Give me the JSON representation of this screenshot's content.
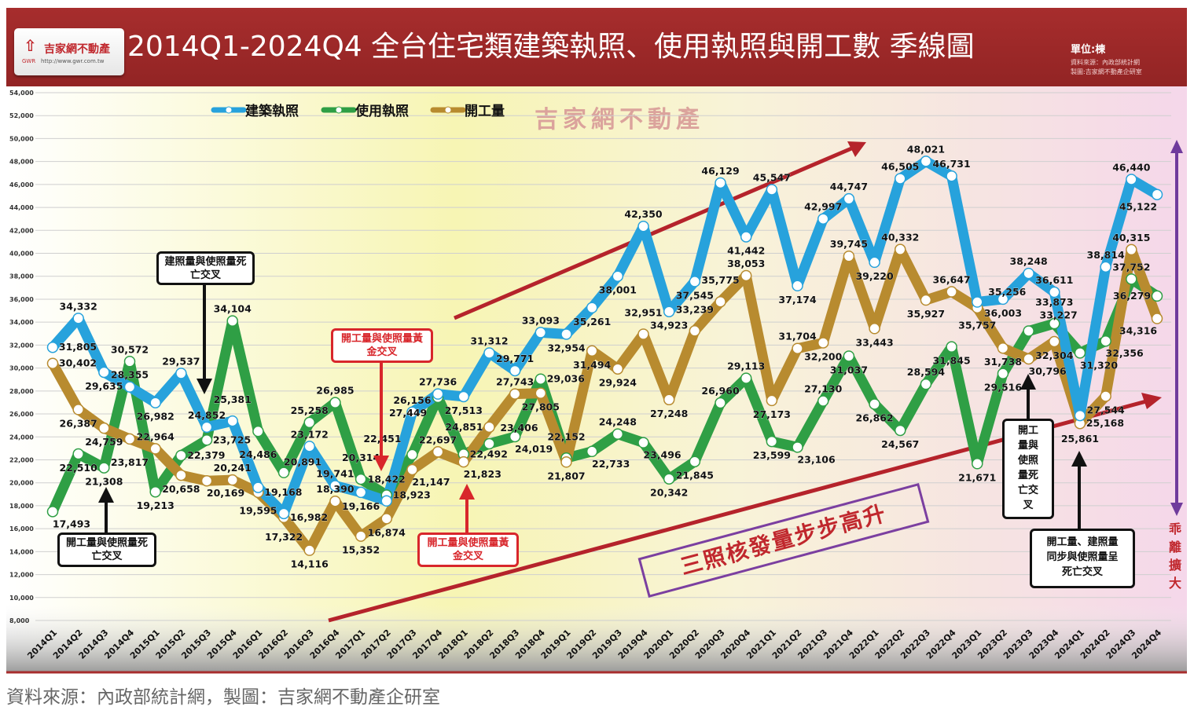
{
  "header": {
    "title": "2014Q1-2024Q4  全台住宅類建築執照、使用執照與開工數  季線圖",
    "unit": "單位:棟",
    "source_small": "資料來源：內政部統計網",
    "maker_small": "製圖:吉家網不動產企研室"
  },
  "logo": {
    "mark": "⇧",
    "name": "吉家網不動產",
    "gwr": "GWR",
    "url": "http://www.gwr.com.tw"
  },
  "watermark": "吉家網不動產",
  "footer": "資料來源：內政部統計網，製圖：吉家網不動產企研室",
  "annotations": {
    "death_cross_permit": "建照量與使照量死亡交叉",
    "death_cross_start_1": "開工量與使照量死亡交叉",
    "golden_cross_1": "開工量與使照量黃金交叉",
    "golden_cross_2": "開工量與使照量黃金交叉",
    "death_cross_start_2": "開工量與使照量死亡交叉",
    "death_cross_all": "開工量、建照量同步與使照量呈死亡交叉",
    "slogan": "三照核發量步步高升",
    "divergence": "乖離擴大"
  },
  "colors": {
    "building": "#27a2dc",
    "usage": "#2f9f45",
    "start": "#b88b2f",
    "trend": "#c0272d",
    "purple": "#6f3b9c"
  },
  "chart_data": {
    "type": "line",
    "title": "2014Q1-2024Q4 全台住宅類建築執照、使用執照與開工數 季線圖",
    "ylabel": "單位:棟",
    "ylim": [
      8000,
      54000
    ],
    "ytick_step": 2000,
    "grid": true,
    "legend_position": "top-left",
    "categories": [
      "2014Q1",
      "2014Q2",
      "2014Q3",
      "2014Q4",
      "2015Q1",
      "2015Q2",
      "2015Q3",
      "2015Q4",
      "2016Q1",
      "2016Q2",
      "2016Q3",
      "2016Q4",
      "2017Q1",
      "2017Q2",
      "2017Q3",
      "2017Q4",
      "2018Q1",
      "2018Q2",
      "2018Q3",
      "2018Q4",
      "2019Q1",
      "2019Q2",
      "2019Q3",
      "2019Q4",
      "2020Q1",
      "2020Q2",
      "2020Q3",
      "2020Q4",
      "2021Q1",
      "2021Q2",
      "2021Q3",
      "2021Q4",
      "2022Q1",
      "2022Q2",
      "2022Q3",
      "2022Q4",
      "2023Q1",
      "2023Q2",
      "2023Q3",
      "2023Q4",
      "2024Q1",
      "2024Q2",
      "2024Q3",
      "2024Q4"
    ],
    "series": [
      {
        "name": "建築執照",
        "key": "building",
        "values": [
          31805,
          34332,
          29635,
          28355,
          26982,
          29537,
          24852,
          25381,
          19595,
          17322,
          23172,
          19741,
          19166,
          18422,
          26156,
          27736,
          27513,
          31312,
          29771,
          33093,
          32954,
          35261,
          38001,
          42350,
          34923,
          37545,
          46129,
          41442,
          45547,
          37174,
          42997,
          44747,
          39220,
          46505,
          48021,
          46731,
          35757,
          36003,
          38248,
          36611,
          25861,
          38814,
          46440,
          45122
        ]
      },
      {
        "name": "使用執照",
        "key": "usage",
        "values": [
          17493,
          22510,
          21308,
          30572,
          19213,
          22379,
          23725,
          34104,
          24486,
          20891,
          25258,
          26985,
          20314,
          18923,
          22451,
          27449,
          22492,
          23406,
          24019,
          29036,
          22152,
          22733,
          24248,
          23496,
          20342,
          21845,
          26960,
          29113,
          23599,
          23106,
          27130,
          31037,
          26862,
          24567,
          28594,
          31845,
          21671,
          29516,
          33227,
          33873,
          31320,
          32356,
          37752,
          36279
        ]
      },
      {
        "name": "開工量",
        "key": "start",
        "values": [
          30402,
          26387,
          24759,
          23817,
          22964,
          20658,
          20169,
          20241,
          19168,
          16982,
          14116,
          18390,
          15352,
          16874,
          21147,
          22697,
          21823,
          24851,
          27743,
          27805,
          21807,
          31494,
          29924,
          32951,
          27248,
          33239,
          35775,
          38053,
          27173,
          31704,
          32200,
          39745,
          33443,
          40332,
          35927,
          36647,
          35256,
          31738,
          30796,
          32304,
          25168,
          27544,
          40315,
          34316
        ]
      }
    ]
  }
}
